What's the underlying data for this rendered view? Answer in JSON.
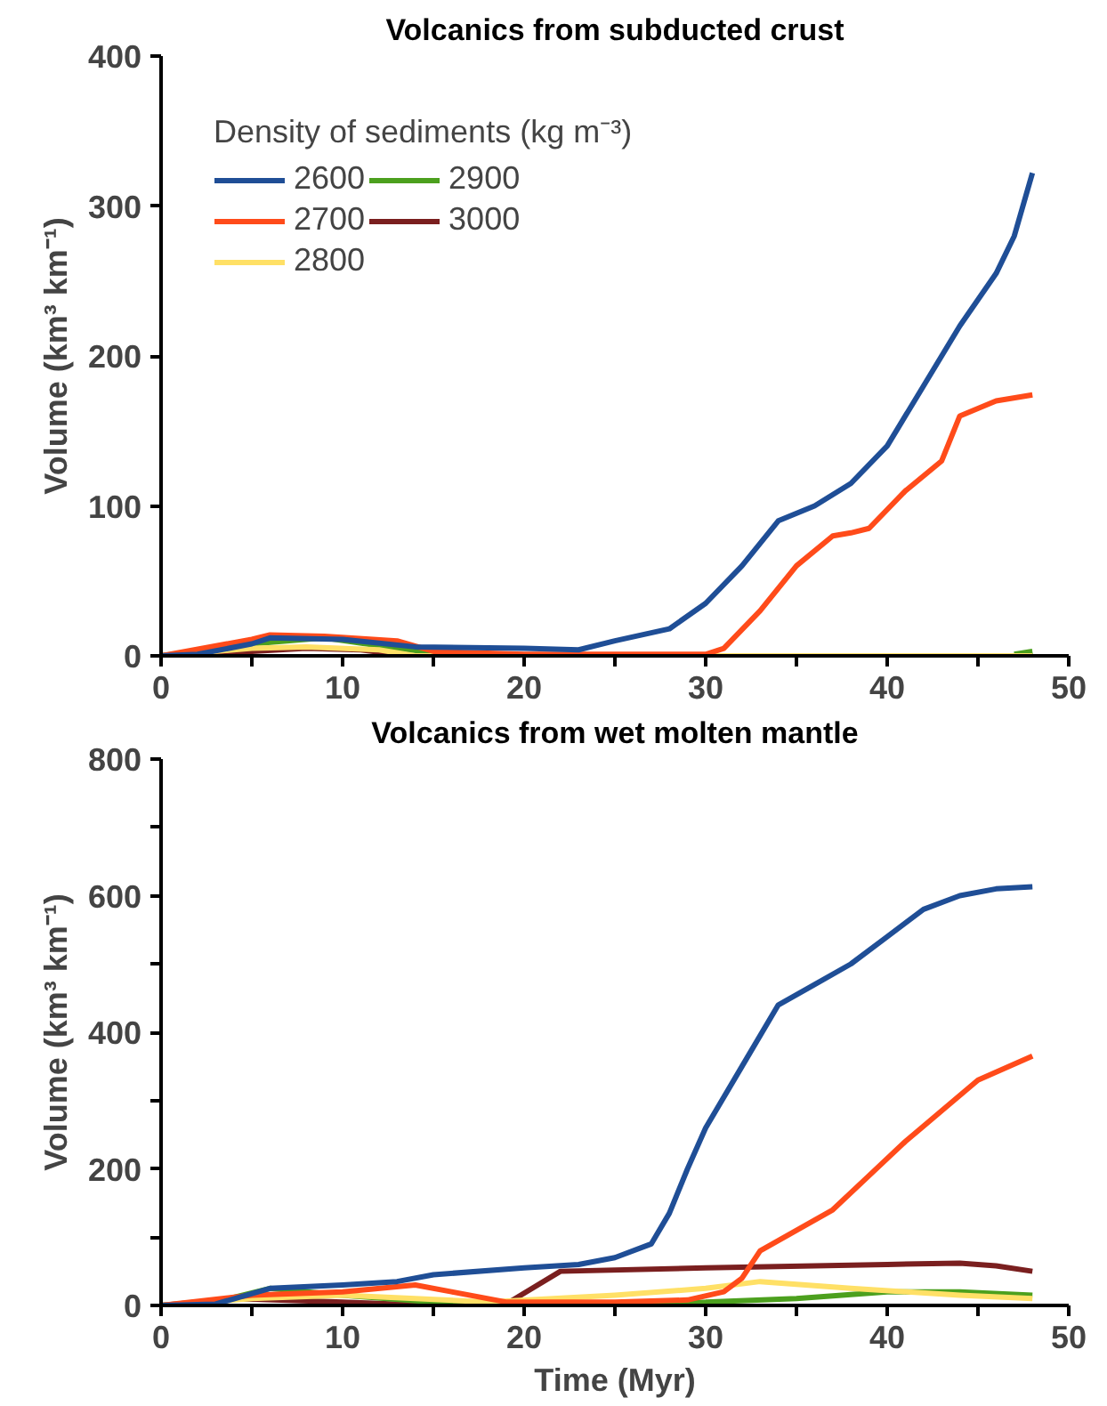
{
  "chart_data": [
    {
      "type": "line",
      "title": "Volcanics from subducted crust",
      "ylabel": "Volume (km³ km⁻¹)",
      "legend_title": "Density of sediments (kg m⁻³)",
      "legend": "top left",
      "grid": false,
      "xlim": [
        0,
        50
      ],
      "ylim": [
        0,
        400
      ],
      "xticks": [
        0,
        {
          "value": 5,
          "label": null
        },
        10,
        {
          "value": 15,
          "label": null
        },
        20,
        {
          "value": 25,
          "label": null
        },
        30,
        {
          "value": 35,
          "label": null
        },
        40,
        {
          "value": 45,
          "label": null
        },
        50
      ],
      "yticks": [
        0,
        100,
        200,
        300,
        400
      ],
      "series": [
        {
          "name": "2600",
          "color": "#1f4e96",
          "x": [
            0,
            2,
            5,
            6,
            10,
            14,
            20,
            23,
            25,
            28,
            30,
            32,
            34,
            36,
            38,
            40,
            42,
            44,
            46,
            47,
            48
          ],
          "values": [
            0,
            1,
            8,
            12,
            11,
            6,
            5,
            4,
            10,
            18,
            35,
            60,
            90,
            100,
            115,
            140,
            180,
            220,
            255,
            280,
            322
          ]
        },
        {
          "name": "2700",
          "color": "#ff4b1a",
          "x": [
            0,
            5,
            6,
            9,
            13,
            15,
            20,
            30,
            31,
            33,
            35,
            37,
            38,
            39,
            41,
            43,
            44,
            46,
            48
          ],
          "values": [
            0,
            11,
            14,
            13,
            10,
            3,
            1,
            1,
            5,
            30,
            60,
            80,
            82,
            85,
            110,
            130,
            160,
            170,
            174
          ]
        },
        {
          "name": "2800",
          "color": "#ffe066",
          "x": [
            0,
            5,
            8,
            12,
            14,
            48
          ],
          "values": [
            0,
            5,
            6,
            4,
            0,
            0
          ]
        },
        {
          "name": "2900",
          "color": "#4ca01e",
          "x": [
            0,
            5,
            9,
            13,
            15,
            17,
            46,
            47,
            48
          ],
          "values": [
            0,
            8,
            12,
            5,
            2,
            0,
            null,
            1,
            3
          ]
        },
        {
          "name": "3000",
          "color": "#7a1f1f",
          "x": [
            0,
            5,
            8,
            11,
            13,
            14
          ],
          "values": [
            0,
            3,
            5,
            4,
            1,
            0
          ]
        }
      ]
    },
    {
      "type": "line",
      "title": "Volcanics from wet molten mantle",
      "xlabel": "Time (Myr)",
      "ylabel": "Volume (km³ km⁻¹)",
      "grid": false,
      "xlim": [
        0,
        50
      ],
      "ylim": [
        0,
        800
      ],
      "xticks": [
        0,
        {
          "value": 5,
          "label": null
        },
        10,
        {
          "value": 15,
          "label": null
        },
        20,
        {
          "value": 25,
          "label": null
        },
        30,
        {
          "value": 35,
          "label": null
        },
        40,
        {
          "value": 45,
          "label": null
        },
        50
      ],
      "yticks": [
        0,
        {
          "value": 100,
          "label": null
        },
        200,
        {
          "value": 300,
          "label": null
        },
        400,
        {
          "value": 500,
          "label": null
        },
        600,
        {
          "value": 700,
          "label": null
        },
        800
      ],
      "series": [
        {
          "color": "#1f4e96",
          "x": [
            0,
            3,
            6,
            10,
            13,
            15,
            20,
            23,
            25,
            27,
            28,
            29,
            30,
            32,
            34,
            36,
            38,
            40,
            42,
            44,
            46,
            48
          ],
          "values": [
            0,
            2,
            25,
            30,
            35,
            45,
            55,
            60,
            70,
            90,
            135,
            200,
            260,
            350,
            440,
            470,
            500,
            540,
            580,
            600,
            610,
            613
          ]
        },
        {
          "color": "#ff4b1a",
          "x": [
            0,
            5,
            10,
            14,
            16,
            19,
            25,
            29,
            31,
            32,
            33,
            35,
            37,
            39,
            41,
            43,
            45,
            48
          ],
          "values": [
            0,
            15,
            20,
            30,
            20,
            5,
            5,
            8,
            20,
            40,
            80,
            110,
            140,
            190,
            240,
            285,
            330,
            365
          ]
        },
        {
          "color": "#ffe066",
          "x": [
            0,
            5,
            10,
            14,
            18,
            25,
            30,
            33,
            38,
            44,
            48
          ],
          "values": [
            0,
            10,
            15,
            10,
            5,
            15,
            25,
            35,
            25,
            15,
            10
          ]
        },
        {
          "color": "#4ca01e",
          "x": [
            0,
            3,
            6,
            10,
            15,
            20,
            30,
            35,
            40,
            44,
            48
          ],
          "values": [
            0,
            5,
            25,
            15,
            5,
            2,
            5,
            10,
            20,
            20,
            15
          ]
        },
        {
          "color": "#7a1f1f",
          "x": [
            0,
            4,
            10,
            15,
            19,
            22,
            30,
            40,
            44,
            46,
            48
          ],
          "values": [
            0,
            10,
            5,
            0,
            2,
            50,
            55,
            60,
            62,
            58,
            50
          ]
        }
      ]
    }
  ]
}
